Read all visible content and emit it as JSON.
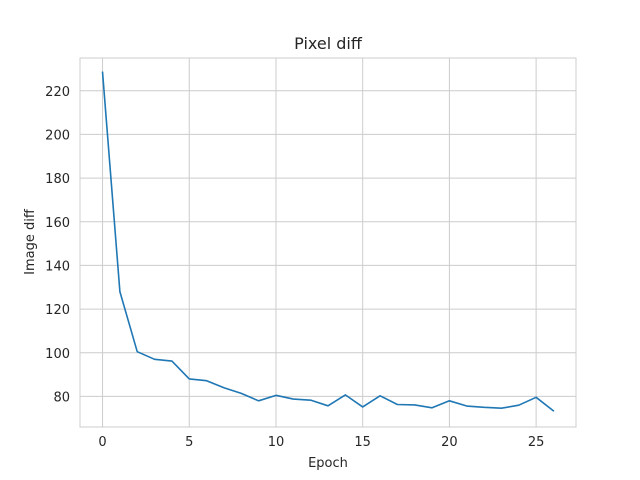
{
  "chart_data": {
    "type": "line",
    "title": "Pixel diff",
    "xlabel": "Epoch",
    "ylabel": "Image diff",
    "xlim": [
      -1.3,
      27.3
    ],
    "ylim": [
      66,
      235
    ],
    "xticks": [
      0,
      5,
      10,
      15,
      20,
      25
    ],
    "yticks": [
      80,
      100,
      120,
      140,
      160,
      180,
      200,
      220
    ],
    "grid": true,
    "series": [
      {
        "color": "#1f77b4",
        "x": [
          0,
          1,
          2,
          3,
          4,
          5,
          6,
          7,
          8,
          9,
          10,
          11,
          12,
          13,
          14,
          15,
          16,
          17,
          18,
          19,
          20,
          21,
          22,
          23,
          24,
          25,
          26
        ],
        "y": [
          228.5,
          128,
          100.5,
          97,
          96.2,
          88,
          87.2,
          84,
          81.4,
          78,
          80.5,
          78.8,
          78.3,
          75.7,
          80.7,
          75.2,
          80.3,
          76.3,
          76.1,
          74.8,
          78,
          75.6,
          75,
          74.6,
          76,
          79.6,
          73.4
        ]
      }
    ]
  }
}
